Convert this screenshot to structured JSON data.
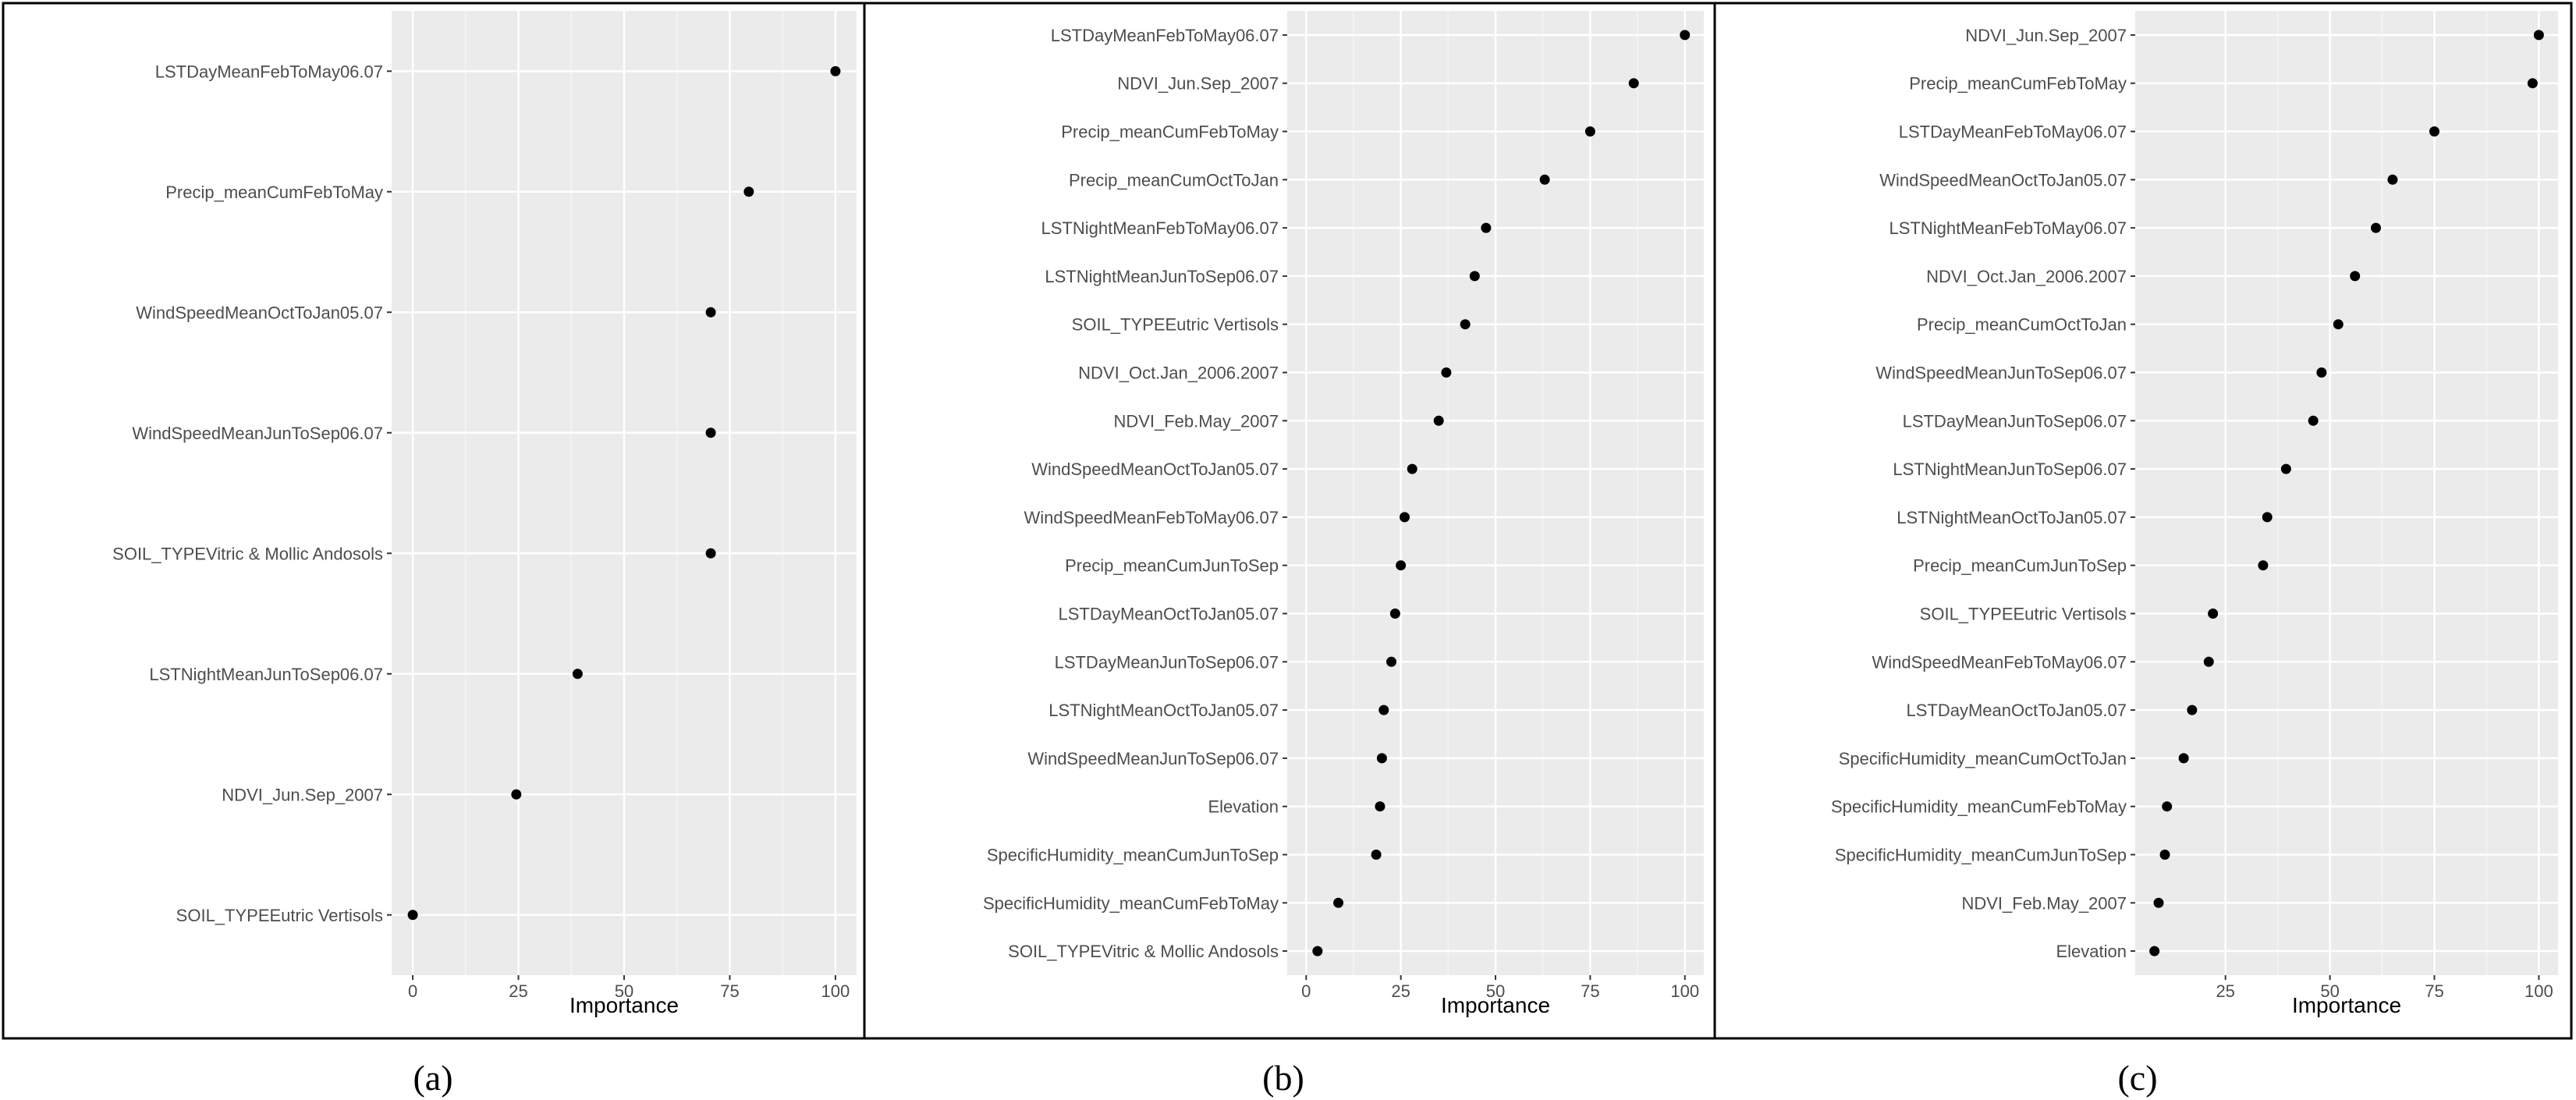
{
  "style": {
    "panel_background": "#ebebeb",
    "grid_major": "#ffffff",
    "grid_minor": "#f4f4f4",
    "point_color": "#000000",
    "border_color": "#000000"
  },
  "chart_data": [
    {
      "type": "scatter",
      "panel_label": "(a)",
      "xlabel": "Importance",
      "xlim": [
        -5,
        105
      ],
      "xticks": [
        "0",
        "25",
        "50",
        "75",
        "100"
      ],
      "xtick_values": [
        0,
        25,
        50,
        75,
        100
      ],
      "categories": [
        "LSTDayMeanFebToMay06.07",
        "Precip_meanCumFebToMay",
        "WindSpeedMeanOctToJan05.07",
        "WindSpeedMeanJunToSep06.07",
        "SOIL_TYPEVitric & Mollic Andosols",
        "LSTNightMeanJunToSep06.07",
        "NDVI_Jun.Sep_2007",
        "SOIL_TYPEEutric Vertisols"
      ],
      "values": [
        100,
        79.5,
        70.5,
        70.5,
        70.5,
        39,
        24.5,
        0
      ]
    },
    {
      "type": "scatter",
      "panel_label": "(b)",
      "xlabel": "Importance",
      "xlim": [
        -5,
        105
      ],
      "xticks": [
        "0",
        "25",
        "50",
        "75",
        "100"
      ],
      "xtick_values": [
        0,
        25,
        50,
        75,
        100
      ],
      "categories": [
        "LSTDayMeanFebToMay06.07",
        "NDVI_Jun.Sep_2007",
        "Precip_meanCumFebToMay",
        "Precip_meanCumOctToJan",
        "LSTNightMeanFebToMay06.07",
        "LSTNightMeanJunToSep06.07",
        "SOIL_TYPEEutric Vertisols",
        "NDVI_Oct.Jan_2006.2007",
        "NDVI_Feb.May_2007",
        "WindSpeedMeanOctToJan05.07",
        "WindSpeedMeanFebToMay06.07",
        "Precip_meanCumJunToSep",
        "LSTDayMeanOctToJan05.07",
        "LSTDayMeanJunToSep06.07",
        "LSTNightMeanOctToJan05.07",
        "WindSpeedMeanJunToSep06.07",
        "Elevation",
        "SpecificHumidity_meanCumJunToSep",
        "SpecificHumidity_meanCumFebToMay",
        "SOIL_TYPEVitric & Mollic Andosols"
      ],
      "values": [
        100,
        86.5,
        75,
        63,
        47.5,
        44.5,
        42,
        37,
        35,
        28,
        26,
        25,
        23.5,
        22.5,
        20.5,
        20,
        19.5,
        18.5,
        8.5,
        3
      ]
    },
    {
      "type": "scatter",
      "panel_label": "(c)",
      "xlabel": "Importance",
      "xlim": [
        3.4,
        104.6
      ],
      "xticks": [
        "25",
        "50",
        "75",
        "100"
      ],
      "xtick_values": [
        25,
        50,
        75,
        100
      ],
      "categories": [
        "NDVI_Jun.Sep_2007",
        "Precip_meanCumFebToMay",
        "LSTDayMeanFebToMay06.07",
        "WindSpeedMeanOctToJan05.07",
        "LSTNightMeanFebToMay06.07",
        "NDVI_Oct.Jan_2006.2007",
        "Precip_meanCumOctToJan",
        "WindSpeedMeanJunToSep06.07",
        "LSTDayMeanJunToSep06.07",
        "LSTNightMeanJunToSep06.07",
        "LSTNightMeanOctToJan05.07",
        "Precip_meanCumJunToSep",
        "SOIL_TYPEEutric Vertisols",
        "WindSpeedMeanFebToMay06.07",
        "LSTDayMeanOctToJan05.07",
        "SpecificHumidity_meanCumOctToJan",
        "SpecificHumidity_meanCumFebToMay",
        "SpecificHumidity_meanCumJunToSep",
        "NDVI_Feb.May_2007",
        "Elevation"
      ],
      "values": [
        100,
        98.5,
        75,
        65,
        61,
        56,
        52,
        48,
        46,
        39.5,
        35,
        34,
        22,
        21,
        17,
        15,
        11,
        10.5,
        9,
        8
      ]
    }
  ]
}
